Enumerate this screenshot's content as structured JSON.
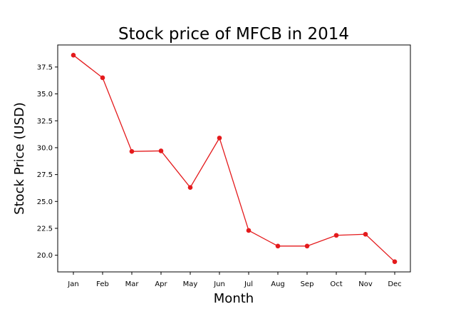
{
  "chart_data": {
    "type": "line",
    "title": "Stock price of MFCB in 2014",
    "xlabel": "Month",
    "ylabel": "Stock Price (USD)",
    "categories": [
      "Jan",
      "Feb",
      "Mar",
      "Apr",
      "May",
      "Jun",
      "Jul",
      "Aug",
      "Sep",
      "Oct",
      "Nov",
      "Dec"
    ],
    "series": [
      {
        "values": [
          38.6,
          36.5,
          29.65,
          29.7,
          26.3,
          30.9,
          22.3,
          20.85,
          20.85,
          21.85,
          21.95,
          19.4
        ]
      }
    ],
    "yticks": [
      "20.0",
      "22.5",
      "25.0",
      "27.5",
      "30.0",
      "32.5",
      "35.0",
      "37.5"
    ],
    "ylim": [
      18.45,
      39.55
    ],
    "grid": false,
    "legend": "none",
    "line_color": "#e41a1c"
  }
}
